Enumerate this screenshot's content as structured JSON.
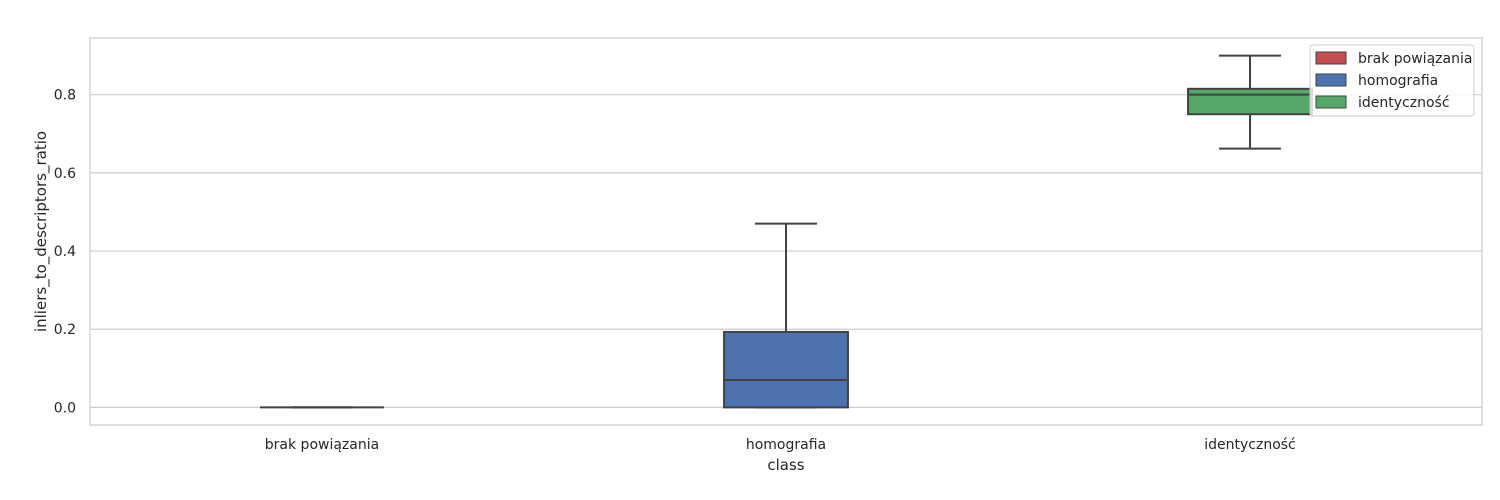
{
  "chart_data": {
    "type": "box",
    "xlabel": "class",
    "ylabel": "inliers_to_descriptors_ratio",
    "ylim": [
      -0.045,
      0.945
    ],
    "yticks": [
      0.0,
      0.2,
      0.4,
      0.6,
      0.8
    ],
    "ytick_labels": [
      "0.0",
      "0.2",
      "0.4",
      "0.6",
      "0.8"
    ],
    "grid": true,
    "legend_position": "top-right",
    "categories": [
      "brak powiązania",
      "homografia",
      "identyczność"
    ],
    "boxes": [
      {
        "name": "brak powiązania",
        "color": "#c44e52",
        "whisker_low": 0.0,
        "q1": 0.0,
        "median": 0.0,
        "q3": 0.0,
        "whisker_high": 0.0
      },
      {
        "name": "homografia",
        "color": "#4c72b0",
        "whisker_low": 0.0,
        "q1": 0.0,
        "median": 0.07,
        "q3": 0.193,
        "whisker_high": 0.47
      },
      {
        "name": "identyczność",
        "color": "#55a868",
        "whisker_low": 0.662,
        "q1": 0.75,
        "median": 0.8,
        "q3": 0.815,
        "whisker_high": 0.9
      }
    ]
  }
}
